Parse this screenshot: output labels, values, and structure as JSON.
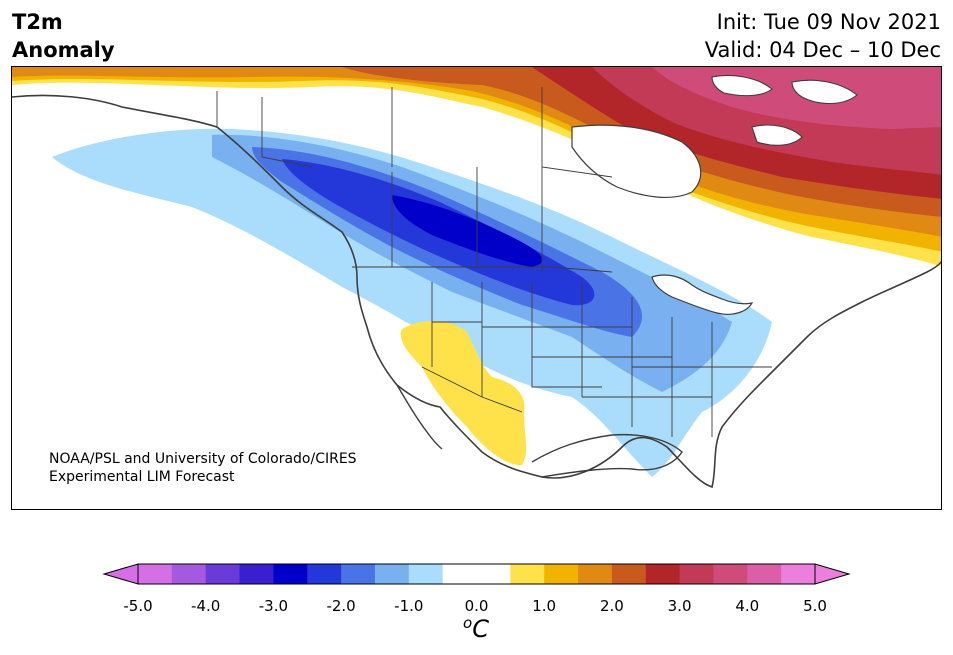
{
  "header": {
    "title_line1": "T2m",
    "title_line2": "Anomaly",
    "init": "Init: Tue 09 Nov 2021",
    "valid": "Valid: 04 Dec – 10 Dec"
  },
  "credit": {
    "line1": "NOAA/PSL and University of Colorado/CIRES",
    "line2": "Experimental LIM Forecast"
  },
  "map": {
    "region": "North America",
    "variable": "2-m temperature anomaly"
  },
  "colorbar": {
    "ticks": [
      "-5.0",
      "-4.0",
      "-3.0",
      "-2.0",
      "-1.0",
      "0.0",
      "1.0",
      "2.0",
      "3.0",
      "4.0",
      "5.0"
    ],
    "units_base": "C",
    "units_sup": "o",
    "colors": [
      "#d46fe6",
      "#a35ae0",
      "#6a3bd9",
      "#3a1fd0",
      "#0000c8",
      "#2437d8",
      "#4a73e6",
      "#78b0f0",
      "#aadcfb",
      "#ffffff",
      "#ffffff",
      "#ffe24a",
      "#f2b300",
      "#e08a14",
      "#c75a1c",
      "#b2262a",
      "#c23a55",
      "#cf4c7a",
      "#da5fa6",
      "#ec7fdc"
    ]
  },
  "palette": {
    "coast": "#3d3d3d",
    "border": "#3d3d3d"
  }
}
